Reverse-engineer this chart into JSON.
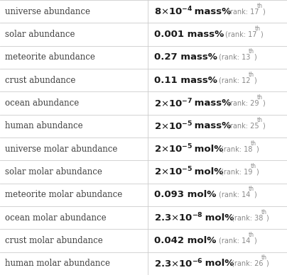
{
  "rows": [
    {
      "label": "universe abundance",
      "sci": true,
      "coeff": "8",
      "exp": "-4",
      "unit": "mass%",
      "rank": "17",
      "rsup": "th"
    },
    {
      "label": "solar abundance",
      "sci": false,
      "coeff": "0.001",
      "exp": "",
      "unit": "mass%",
      "rank": "17",
      "rsup": "th"
    },
    {
      "label": "meteorite abundance",
      "sci": false,
      "coeff": "0.27",
      "exp": "",
      "unit": "mass%",
      "rank": "13",
      "rsup": "th"
    },
    {
      "label": "crust abundance",
      "sci": false,
      "coeff": "0.11",
      "exp": "",
      "unit": "mass%",
      "rank": "12",
      "rsup": "th"
    },
    {
      "label": "ocean abundance",
      "sci": true,
      "coeff": "2",
      "exp": "-7",
      "unit": "mass%",
      "rank": "29",
      "rsup": "th"
    },
    {
      "label": "human abundance",
      "sci": true,
      "coeff": "2",
      "exp": "-5",
      "unit": "mass%",
      "rank": "25",
      "rsup": "th"
    },
    {
      "label": "universe molar abundance",
      "sci": true,
      "coeff": "2",
      "exp": "-5",
      "unit": "mol%",
      "rank": "18",
      "rsup": "th"
    },
    {
      "label": "solar molar abundance",
      "sci": true,
      "coeff": "2",
      "exp": "-5",
      "unit": "mol%",
      "rank": "19",
      "rsup": "th"
    },
    {
      "label": "meteorite molar abundance",
      "sci": false,
      "coeff": "0.093",
      "exp": "",
      "unit": "mol%",
      "rank": "14",
      "rsup": "th"
    },
    {
      "label": "ocean molar abundance",
      "sci": true,
      "coeff": "2.3",
      "exp": "-8",
      "unit": "mol%",
      "rank": "38",
      "rsup": "th"
    },
    {
      "label": "crust molar abundance",
      "sci": false,
      "coeff": "0.042",
      "exp": "",
      "unit": "mol%",
      "rank": "14",
      "rsup": "th"
    },
    {
      "label": "human molar abundance",
      "sci": true,
      "coeff": "2.3",
      "exp": "-6",
      "unit": "mol%",
      "rank": "26",
      "rsup": "th"
    }
  ],
  "bg_color": "#ffffff",
  "grid_color": "#cccccc",
  "label_color": "#404040",
  "value_color": "#1a1a1a",
  "rank_color": "#888888",
  "col_split": 0.515,
  "label_fontsize": 8.5,
  "value_fontsize": 9.5,
  "rank_fontsize": 7.0
}
